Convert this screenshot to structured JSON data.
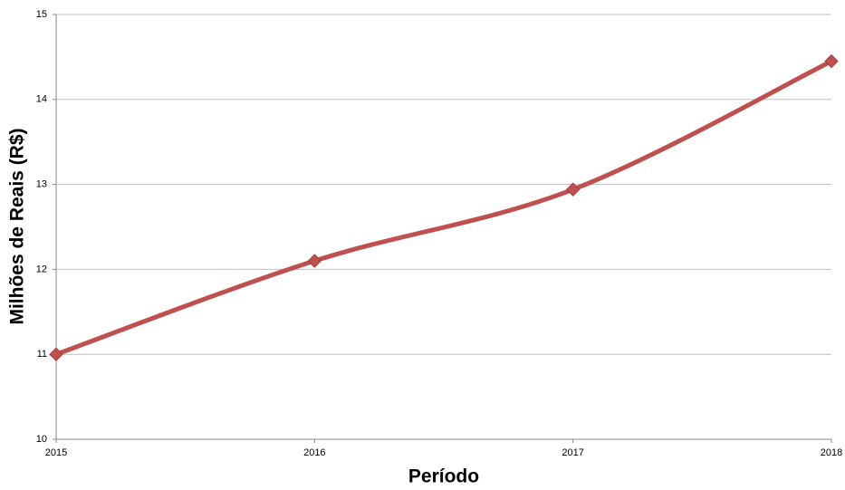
{
  "chart_data": {
    "type": "line",
    "x": [
      2015,
      2016,
      2017,
      2018
    ],
    "xlim": [
      2015,
      2018
    ],
    "xticks": [
      2015,
      2016,
      2017,
      2018
    ],
    "ylim": [
      10,
      15
    ],
    "yticks": [
      10,
      11,
      12,
      13,
      14,
      15
    ],
    "xlabel": "Período",
    "ylabel": "Milhões de Reais (R$)",
    "grid": true,
    "smooth": true,
    "series": [
      {
        "color": "#c0504d",
        "values": [
          11.0,
          12.1,
          12.94,
          14.45
        ]
      }
    ]
  }
}
